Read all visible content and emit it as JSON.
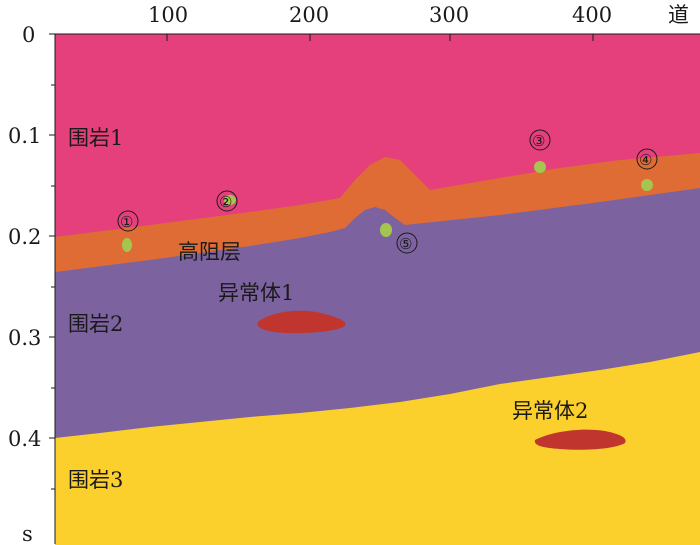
{
  "axes": {
    "x_ticks": [
      "100",
      "200",
      "300",
      "400"
    ],
    "x_unit": "道",
    "y_ticks": [
      "0",
      "0.1",
      "0.2",
      "0.3",
      "0.4"
    ],
    "y_unit": "s"
  },
  "layers": {
    "rock1": "围岩1",
    "high_res": "高阻层",
    "rock2": "围岩2",
    "rock3": "围岩3"
  },
  "anomalies": {
    "a1": "异常体1",
    "a2": "异常体2"
  },
  "markers": [
    "①",
    "②",
    "③",
    "④",
    "⑤"
  ],
  "colors": {
    "rock1": "#e5407c",
    "high_res": "#df6c34",
    "rock2": "#7d62a0",
    "rock3": "#fcd02c",
    "anomaly": "#c0362e",
    "marker": "#a4c64e"
  }
}
